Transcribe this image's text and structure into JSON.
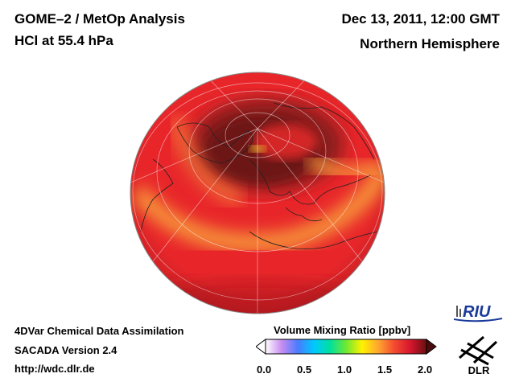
{
  "header": {
    "title_line1": "GOME–2 / MetOp Analysis",
    "title_line2": "HCl at 55.4 hPa",
    "date": "Dec 13, 2011, 12:00 GMT",
    "region": "Northern Hemisphere"
  },
  "footer": {
    "line1": "4DVar Chemical Data Assimilation",
    "line2": "SACADA Version 2.4",
    "line3": "http://wdc.dlr.de"
  },
  "colorbar": {
    "title": "Volume Mixing Ratio [ppbv]",
    "ticks": [
      "0.0",
      "0.5",
      "1.0",
      "1.5",
      "2.0"
    ],
    "range": [
      0.0,
      2.0
    ],
    "colors": [
      "#ffffff",
      "#c78cf0",
      "#4a7bff",
      "#00c8ff",
      "#00e0a0",
      "#6de832",
      "#fff200",
      "#ffa630",
      "#f44a30",
      "#d6162e",
      "#6b1010"
    ]
  },
  "logos": {
    "riu": "RIU",
    "dlr": "DLR"
  },
  "map": {
    "projection": "orthographic",
    "center": "North Pole",
    "field": "HCl"
  }
}
